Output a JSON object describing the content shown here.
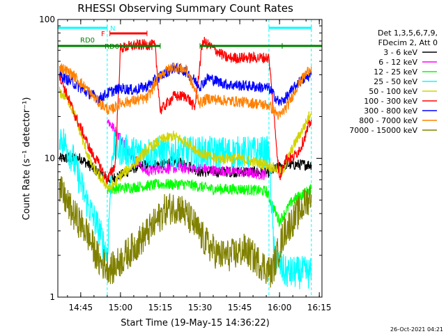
{
  "chart_data": {
    "type": "line",
    "title": "RHESSI Observing Summary Count Rates",
    "xlabel": "Start Time (19-May-15 14:36:22)",
    "ylabel": "Count Rate (s⁻¹ detector⁻¹)",
    "yscale": "log",
    "ylim": [
      1,
      100
    ],
    "xlim": [
      "14:36:22",
      "16:16:00"
    ],
    "x_ticks": [
      "14:45",
      "15:00",
      "15:15",
      "15:30",
      "15:45",
      "16:00",
      "16:15"
    ],
    "y_ticks": [
      "1",
      "10",
      "100"
    ],
    "grid": false,
    "legend_header": [
      "Det 1,3,5,6,7,9,",
      "FDecim 2, Att 0"
    ],
    "legend_position": "right",
    "timestamp": "26-Oct-2021 04:21",
    "annotations": [
      {
        "label": "N",
        "color": "#00ffff"
      },
      {
        "label": "F",
        "color": "#ff0000"
      },
      {
        "label": "RD0",
        "color": "#008000"
      },
      {
        "label": "RD6",
        "color": "#008000"
      }
    ],
    "bars": {
      "night": {
        "color": "#00ffff",
        "y": 86,
        "intervals": [
          [
            "14:36:22",
            "14:55:00"
          ],
          [
            "15:56:00",
            "16:12:00"
          ]
        ]
      },
      "flare": {
        "color": "#ff0000",
        "y": 74,
        "intervals": [
          [
            "14:56:00",
            "15:10:00"
          ]
        ]
      },
      "decim": {
        "color": "#008000",
        "y": 62,
        "intervals": [
          [
            "14:36:22",
            "15:15:00"
          ],
          [
            "15:30:00",
            "16:01:00"
          ],
          [
            "16:01:00",
            "16:16:00"
          ]
        ]
      }
    },
    "vlines": {
      "color": "#00ffff",
      "times": [
        "14:55:00",
        "15:56:00",
        "16:12:00"
      ]
    },
    "series": [
      {
        "name": "3 - 6 keV",
        "color": "#000000",
        "points": [
          [
            "14:37",
            10
          ],
          [
            "14:45",
            10
          ],
          [
            "14:55",
            7
          ],
          [
            "15:00",
            7.5
          ],
          [
            "15:05",
            8.5
          ],
          [
            "15:10",
            9
          ],
          [
            "15:15",
            9
          ],
          [
            "15:20",
            9.5
          ],
          [
            "15:25",
            9
          ],
          [
            "15:30",
            8
          ],
          [
            "15:40",
            8
          ],
          [
            "15:50",
            8
          ],
          [
            "15:55",
            7.8
          ],
          [
            "16:02",
            9
          ],
          [
            "16:12",
            9
          ]
        ]
      },
      {
        "name": "6 - 12 keV",
        "color": "#ff00ff",
        "points": [
          [
            "14:55",
            19
          ],
          [
            "15:00",
            14
          ],
          [
            "15:05",
            10
          ],
          [
            "15:10",
            8
          ],
          [
            "15:15",
            8.5
          ],
          [
            "15:25",
            8.5
          ],
          [
            "15:30",
            8.5
          ],
          [
            "15:35",
            8.2
          ],
          [
            "15:45",
            8
          ],
          [
            "15:55",
            7.6
          ]
        ]
      },
      {
        "name": "12 - 25 keV",
        "color": "#00ff00",
        "points": [
          [
            "14:55",
            6
          ],
          [
            "15:05",
            6.2
          ],
          [
            "15:15",
            6.5
          ],
          [
            "15:25",
            6.5
          ],
          [
            "15:35",
            6
          ],
          [
            "15:45",
            6
          ],
          [
            "15:55",
            5.8
          ],
          [
            "16:00",
            3.5
          ],
          [
            "16:05",
            5
          ],
          [
            "16:12",
            6
          ]
        ]
      },
      {
        "name": "25 - 50 keV",
        "color": "#00ffff",
        "points": [
          [
            "14:37",
            15
          ],
          [
            "14:42",
            10
          ],
          [
            "14:47",
            5
          ],
          [
            "14:52",
            3
          ],
          [
            "14:55",
            2
          ],
          [
            "14:57",
            12
          ],
          [
            "15:05",
            11
          ],
          [
            "15:15",
            11
          ],
          [
            "15:25",
            11
          ],
          [
            "15:30",
            11
          ],
          [
            "15:40",
            11
          ],
          [
            "15:50",
            11
          ],
          [
            "15:56",
            11
          ],
          [
            "15:58",
            2
          ],
          [
            "16:02",
            1.5
          ],
          [
            "16:08",
            1.5
          ],
          [
            "16:12",
            1.5
          ]
        ]
      },
      {
        "name": "50 - 100 keV",
        "color": "#d4d400",
        "points": [
          [
            "14:37",
            30
          ],
          [
            "14:40",
            27
          ],
          [
            "14:43",
            20
          ],
          [
            "14:46",
            13
          ],
          [
            "14:49",
            9
          ],
          [
            "14:53",
            7
          ],
          [
            "14:56",
            6
          ],
          [
            "15:00",
            7.5
          ],
          [
            "15:05",
            9
          ],
          [
            "15:10",
            11.5
          ],
          [
            "15:15",
            13.5
          ],
          [
            "15:20",
            14.5
          ],
          [
            "15:25",
            13
          ],
          [
            "15:30",
            11
          ],
          [
            "15:35",
            10
          ],
          [
            "15:45",
            10
          ],
          [
            "15:55",
            9
          ],
          [
            "16:01",
            8
          ],
          [
            "16:05",
            12
          ],
          [
            "16:10",
            18
          ],
          [
            "16:12",
            22
          ]
        ]
      },
      {
        "name": "100 - 300 keV",
        "color": "#ff0000",
        "points": [
          [
            "14:37",
            40
          ],
          [
            "14:40",
            28
          ],
          [
            "14:43",
            20
          ],
          [
            "14:46",
            15
          ],
          [
            "14:49",
            11
          ],
          [
            "14:52",
            9
          ],
          [
            "14:55",
            7
          ],
          [
            "14:58",
            9
          ],
          [
            "15:00",
            62
          ],
          [
            "15:05",
            65
          ],
          [
            "15:10",
            66
          ],
          [
            "15:13",
            65
          ],
          [
            "15:15",
            22
          ],
          [
            "15:20",
            28
          ],
          [
            "15:25",
            28
          ],
          [
            "15:28",
            23
          ],
          [
            "15:31",
            70
          ],
          [
            "15:40",
            53
          ],
          [
            "15:50",
            53
          ],
          [
            "15:56",
            53
          ],
          [
            "16:00",
            7
          ],
          [
            "16:02",
            10
          ],
          [
            "16:05",
            10
          ],
          [
            "16:08",
            12
          ],
          [
            "16:12",
            19
          ]
        ]
      },
      {
        "name": "300 - 800 keV",
        "color": "#0000ff",
        "points": [
          [
            "14:37",
            40
          ],
          [
            "14:42",
            35
          ],
          [
            "14:47",
            30
          ],
          [
            "14:52",
            27
          ],
          [
            "14:56",
            30
          ],
          [
            "15:00",
            32
          ],
          [
            "15:05",
            31
          ],
          [
            "15:10",
            33
          ],
          [
            "15:15",
            39
          ],
          [
            "15:20",
            45
          ],
          [
            "15:25",
            42
          ],
          [
            "15:30",
            33
          ],
          [
            "15:33",
            38
          ],
          [
            "15:40",
            34
          ],
          [
            "15:50",
            33
          ],
          [
            "15:56",
            32
          ],
          [
            "16:00",
            25
          ],
          [
            "16:03",
            28
          ],
          [
            "16:07",
            35
          ],
          [
            "16:12",
            40
          ]
        ]
      },
      {
        "name": "800 - 7000 keV",
        "color": "#ff8000",
        "points": [
          [
            "14:37",
            46
          ],
          [
            "14:42",
            40
          ],
          [
            "14:47",
            32
          ],
          [
            "14:52",
            25
          ],
          [
            "14:56",
            22
          ],
          [
            "15:00",
            25
          ],
          [
            "15:05",
            26
          ],
          [
            "15:10",
            27
          ],
          [
            "15:15",
            40
          ],
          [
            "15:20",
            46
          ],
          [
            "15:25",
            43
          ],
          [
            "15:30",
            25
          ],
          [
            "15:33",
            27
          ],
          [
            "15:40",
            26
          ],
          [
            "15:50",
            25
          ],
          [
            "15:56",
            24
          ],
          [
            "16:00",
            20
          ],
          [
            "16:03",
            24
          ],
          [
            "16:07",
            34
          ],
          [
            "16:12",
            46
          ]
        ]
      },
      {
        "name": "7000 - 15000 keV",
        "color": "#808000",
        "points": [
          [
            "14:37",
            6
          ],
          [
            "14:42",
            4
          ],
          [
            "14:47",
            3
          ],
          [
            "14:52",
            1.8
          ],
          [
            "14:57",
            1.6
          ],
          [
            "15:02",
            2
          ],
          [
            "15:07",
            2.5
          ],
          [
            "15:12",
            3.2
          ],
          [
            "15:17",
            4.3
          ],
          [
            "15:22",
            4.5
          ],
          [
            "15:27",
            3.5
          ],
          [
            "15:32",
            2.5
          ],
          [
            "15:37",
            2
          ],
          [
            "15:42",
            2
          ],
          [
            "15:47",
            2.2
          ],
          [
            "15:52",
            1.8
          ],
          [
            "15:57",
            1.5
          ],
          [
            "16:02",
            3
          ],
          [
            "16:07",
            4
          ],
          [
            "16:12",
            5.5
          ]
        ]
      }
    ]
  }
}
